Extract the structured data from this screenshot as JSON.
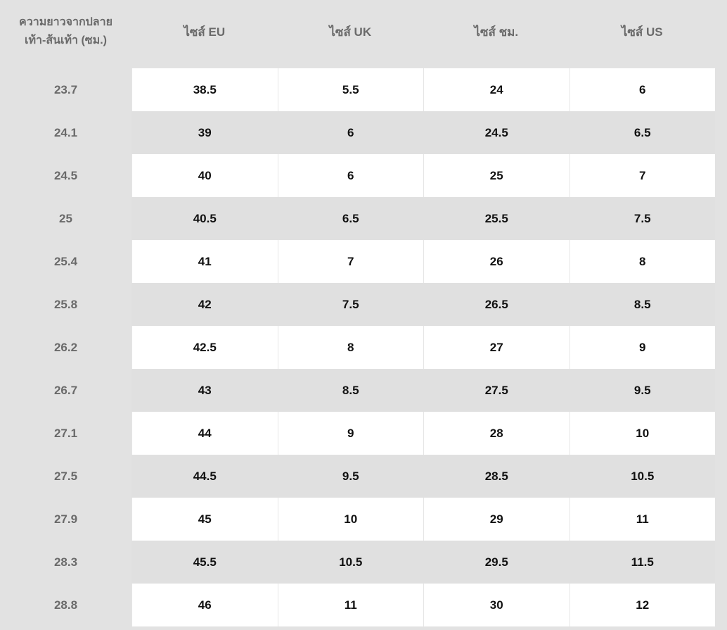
{
  "table": {
    "header": [
      "ความยาวจากปลายเท้า-ส้นเท้า (ซม.)",
      "ไซส์ EU",
      "ไซส์ UK",
      "ไซส์ ชม.",
      "ไซส์ US"
    ],
    "rows": [
      [
        23.7,
        38.5,
        5.5,
        24,
        6
      ],
      [
        24.1,
        39,
        6,
        24.5,
        6.5
      ],
      [
        24.5,
        40,
        6,
        25,
        7
      ],
      [
        25,
        40.5,
        6.5,
        25.5,
        7.5
      ],
      [
        25.4,
        41,
        7,
        26,
        8
      ],
      [
        25.8,
        42,
        7.5,
        26.5,
        8.5
      ],
      [
        26.2,
        42.5,
        8,
        27,
        9
      ],
      [
        26.7,
        43,
        8.5,
        27.5,
        9.5
      ],
      [
        27.1,
        44,
        9,
        28,
        10
      ],
      [
        27.5,
        44.5,
        9.5,
        28.5,
        10.5
      ],
      [
        27.9,
        45,
        10,
        29,
        11
      ],
      [
        28.3,
        45.5,
        10.5,
        29.5,
        11.5
      ],
      [
        28.8,
        46,
        11,
        30,
        12
      ]
    ]
  }
}
